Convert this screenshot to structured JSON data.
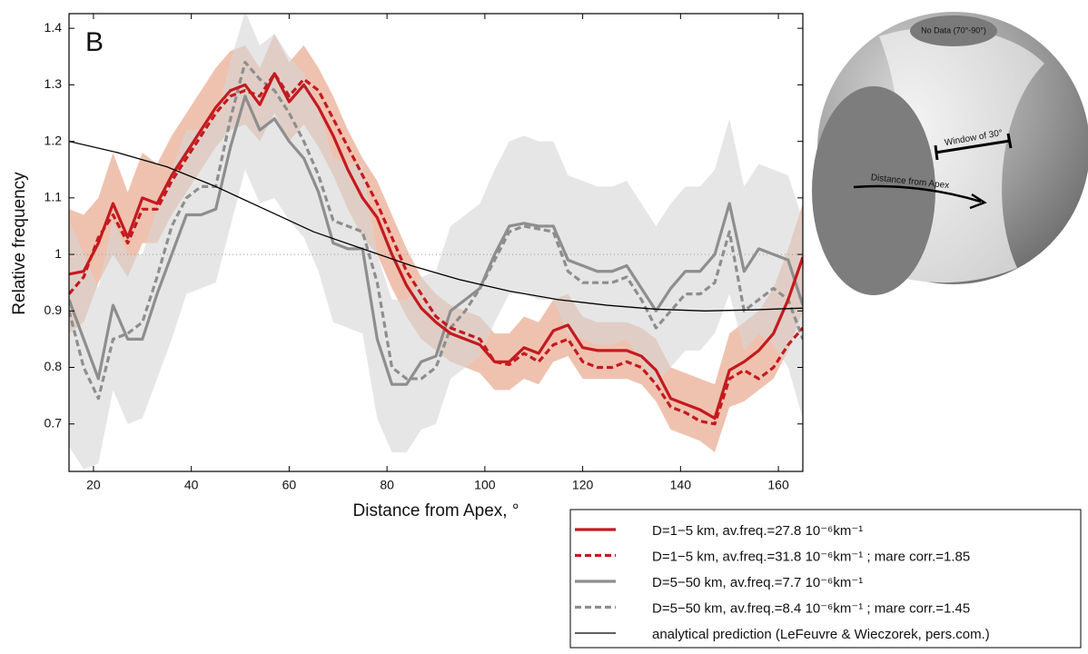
{
  "chart_data": {
    "type": "line",
    "panel_label": "B",
    "x_label": "Distance from Apex, °",
    "y_label": "Relative frequency",
    "xlim": [
      15,
      165
    ],
    "ylim": [
      0.616,
      1.426
    ],
    "xticks": [
      20,
      40,
      60,
      80,
      100,
      120,
      140,
      160
    ],
    "yticks": [
      0.7,
      0.8,
      0.9,
      1,
      1.1,
      1.2,
      1.3,
      1.4
    ],
    "reference_line": 1,
    "x": [
      15,
      18,
      21,
      24,
      27,
      30,
      33,
      36,
      39,
      42,
      45,
      48,
      51,
      54,
      57,
      60,
      63,
      66,
      69,
      72,
      75,
      78,
      81,
      84,
      87,
      90,
      93,
      96,
      99,
      102,
      105,
      108,
      111,
      114,
      117,
      120,
      123,
      126,
      129,
      132,
      135,
      138,
      141,
      144,
      147,
      150,
      153,
      156,
      159,
      162,
      165
    ],
    "series": [
      {
        "name": "D=1−5 km, av.freq.=27.8 10⁻⁶km⁻¹",
        "color": "#c41a1f",
        "dash": false,
        "band_color": "#e59a7a",
        "values": [
          0.965,
          0.97,
          1.02,
          1.09,
          1.03,
          1.1,
          1.09,
          1.14,
          1.18,
          1.22,
          1.26,
          1.29,
          1.3,
          1.265,
          1.32,
          1.27,
          1.3,
          1.26,
          1.21,
          1.15,
          1.1,
          1.065,
          1.0,
          0.945,
          0.905,
          0.88,
          0.86,
          0.85,
          0.84,
          0.81,
          0.81,
          0.835,
          0.825,
          0.865,
          0.875,
          0.835,
          0.83,
          0.83,
          0.83,
          0.82,
          0.795,
          0.745,
          0.735,
          0.725,
          0.71,
          0.795,
          0.81,
          0.83,
          0.86,
          0.92,
          0.995
        ],
        "band_lower": [
          0.86,
          0.88,
          0.95,
          1.0,
          0.96,
          1.02,
          1.02,
          1.07,
          1.11,
          1.15,
          1.19,
          1.22,
          1.23,
          1.2,
          1.25,
          1.2,
          1.23,
          1.19,
          1.14,
          1.08,
          1.03,
          1.0,
          0.94,
          0.89,
          0.85,
          0.83,
          0.81,
          0.8,
          0.79,
          0.76,
          0.76,
          0.78,
          0.77,
          0.81,
          0.82,
          0.78,
          0.78,
          0.78,
          0.78,
          0.77,
          0.74,
          0.69,
          0.68,
          0.67,
          0.65,
          0.73,
          0.74,
          0.76,
          0.78,
          0.83,
          0.9
        ],
        "band_upper": [
          1.08,
          1.07,
          1.1,
          1.18,
          1.11,
          1.18,
          1.16,
          1.21,
          1.25,
          1.29,
          1.33,
          1.36,
          1.37,
          1.33,
          1.39,
          1.34,
          1.37,
          1.33,
          1.28,
          1.22,
          1.17,
          1.13,
          1.07,
          1.01,
          0.96,
          0.93,
          0.91,
          0.9,
          0.89,
          0.86,
          0.86,
          0.89,
          0.88,
          0.92,
          0.93,
          0.89,
          0.88,
          0.88,
          0.88,
          0.87,
          0.85,
          0.8,
          0.79,
          0.78,
          0.77,
          0.86,
          0.88,
          0.9,
          0.94,
          1.01,
          1.09
        ]
      },
      {
        "name": "D=1−5 km, av.freq.=31.8 10⁻⁶km⁻¹ ; mare corr.=1.85",
        "color": "#c41a1f",
        "dash": true,
        "values": [
          0.93,
          0.96,
          1.03,
          1.07,
          1.02,
          1.08,
          1.08,
          1.13,
          1.17,
          1.21,
          1.25,
          1.28,
          1.29,
          1.28,
          1.32,
          1.28,
          1.31,
          1.29,
          1.24,
          1.19,
          1.14,
          1.09,
          1.03,
          0.97,
          0.93,
          0.89,
          0.87,
          0.86,
          0.85,
          0.81,
          0.805,
          0.825,
          0.81,
          0.84,
          0.85,
          0.81,
          0.8,
          0.8,
          0.81,
          0.8,
          0.77,
          0.73,
          0.72,
          0.705,
          0.7,
          0.78,
          0.795,
          0.78,
          0.8,
          0.84,
          0.87
        ]
      },
      {
        "name": "D=5−50 km, av.freq.=7.7 10⁻⁶km⁻¹",
        "color": "#8e8e8e",
        "dash": false,
        "band_color": "#d6d6d6",
        "values": [
          0.92,
          0.85,
          0.78,
          0.91,
          0.85,
          0.85,
          0.93,
          1.0,
          1.07,
          1.07,
          1.08,
          1.19,
          1.28,
          1.22,
          1.24,
          1.2,
          1.17,
          1.11,
          1.02,
          1.01,
          1.01,
          0.85,
          0.77,
          0.77,
          0.81,
          0.82,
          0.9,
          0.92,
          0.94,
          1.0,
          1.05,
          1.055,
          1.05,
          1.05,
          0.99,
          0.98,
          0.97,
          0.97,
          0.98,
          0.94,
          0.9,
          0.94,
          0.97,
          0.97,
          1.0,
          1.09,
          0.97,
          1.01,
          1.0,
          0.99,
          0.91
        ],
        "band_lower": [
          0.66,
          0.62,
          0.63,
          0.76,
          0.7,
          0.71,
          0.78,
          0.85,
          0.93,
          0.94,
          0.95,
          1.05,
          1.15,
          1.09,
          1.1,
          1.06,
          1.03,
          0.97,
          0.88,
          0.87,
          0.86,
          0.71,
          0.65,
          0.65,
          0.69,
          0.7,
          0.78,
          0.8,
          0.82,
          0.88,
          0.93,
          0.93,
          0.92,
          0.92,
          0.86,
          0.85,
          0.84,
          0.84,
          0.85,
          0.81,
          0.77,
          0.8,
          0.83,
          0.83,
          0.86,
          0.93,
          0.83,
          0.86,
          0.84,
          0.8,
          0.71
        ],
        "band_upper": [
          1.06,
          1.0,
          0.94,
          1.06,
          1.0,
          1.0,
          1.08,
          1.15,
          1.22,
          1.22,
          1.24,
          1.34,
          1.43,
          1.37,
          1.39,
          1.35,
          1.32,
          1.26,
          1.17,
          1.16,
          1.16,
          1.0,
          0.92,
          0.92,
          0.96,
          0.97,
          1.05,
          1.07,
          1.09,
          1.15,
          1.2,
          1.21,
          1.2,
          1.2,
          1.14,
          1.13,
          1.12,
          1.12,
          1.13,
          1.09,
          1.05,
          1.09,
          1.12,
          1.12,
          1.15,
          1.24,
          1.12,
          1.16,
          1.15,
          1.14,
          1.06
        ]
      },
      {
        "name": "D=5−50 km, av.freq.=8.4 10⁻⁶km⁻¹ ; mare corr.=1.45",
        "color": "#8e8e8e",
        "dash": true,
        "values": [
          0.9,
          0.8,
          0.745,
          0.85,
          0.86,
          0.88,
          0.96,
          1.05,
          1.1,
          1.12,
          1.12,
          1.24,
          1.34,
          1.31,
          1.29,
          1.25,
          1.2,
          1.14,
          1.06,
          1.05,
          1.04,
          0.95,
          0.8,
          0.78,
          0.78,
          0.8,
          0.87,
          0.9,
          0.94,
          0.99,
          1.04,
          1.05,
          1.045,
          1.04,
          0.97,
          0.95,
          0.95,
          0.95,
          0.96,
          0.92,
          0.87,
          0.9,
          0.93,
          0.93,
          0.95,
          1.04,
          0.9,
          0.92,
          0.94,
          0.92,
          0.85
        ]
      },
      {
        "name": "analytical prediction (LeFeuvre & Wieczorek, pers.com.)",
        "color": "#000000",
        "dash": false,
        "thin": true,
        "x": [
          15,
          25,
          35,
          45,
          55,
          65,
          75,
          85,
          95,
          105,
          115,
          125,
          135,
          145,
          155,
          165
        ],
        "values": [
          1.2,
          1.18,
          1.155,
          1.12,
          1.08,
          1.04,
          1.01,
          0.98,
          0.955,
          0.935,
          0.92,
          0.91,
          0.903,
          0.9,
          0.902,
          0.905
        ]
      }
    ]
  },
  "inset": {
    "no_data": "No Data (70°-90°)",
    "window": "Window of 30°",
    "distance": "Distance from Apex"
  }
}
